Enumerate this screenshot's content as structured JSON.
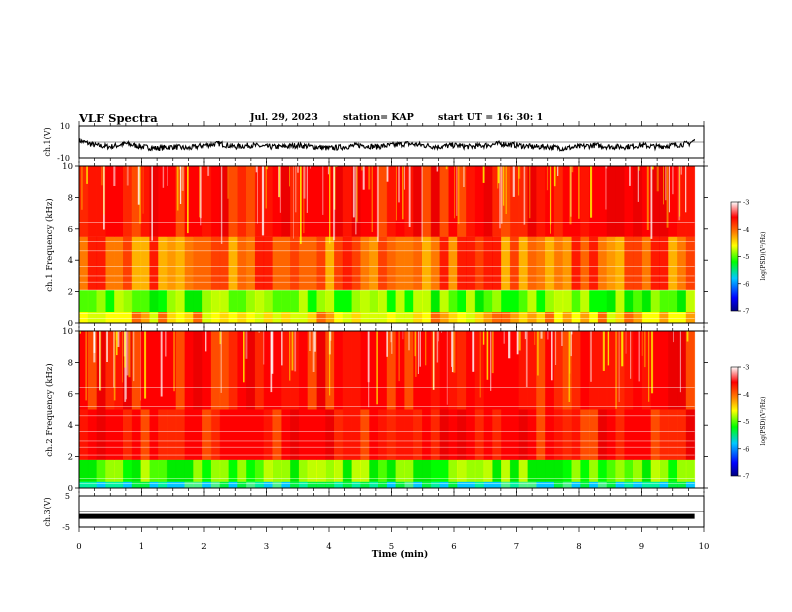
{
  "header": {
    "title": "VLF Spectra",
    "date": "Jul. 29, 2023",
    "station": "station= KAP",
    "start": "start UT =  16: 30: 1"
  },
  "colorbar": {
    "label": "log(PSD)(V²/Hz)",
    "ticks": [
      "-3",
      "-4",
      "-5",
      "-6",
      "-7"
    ],
    "colors": [
      "#000080",
      "#0000ff",
      "#00c8ff",
      "#00ff00",
      "#ffff00",
      "#ff8000",
      "#ff0000",
      "#ffffff"
    ]
  },
  "chart_data": [
    {
      "type": "line",
      "name": "ch.1(V)",
      "ylabel": "ch.1(V)",
      "ylim": [
        -10,
        10
      ],
      "y_tick_labels": [
        "10",
        "-10"
      ],
      "x": [
        0,
        0.25,
        0.5,
        0.75,
        1,
        1.25,
        1.5,
        1.75,
        2,
        2.25,
        2.5,
        2.75,
        3,
        3.25,
        3.5,
        3.75,
        4,
        4.25,
        4.5,
        4.75,
        5,
        5.25,
        5.5,
        5.75,
        6,
        6.25,
        6.5,
        6.75,
        7,
        7.25,
        7.5,
        7.75,
        8,
        8.25,
        8.5,
        8.75,
        9,
        9.25,
        9.5,
        9.75,
        9.85
      ],
      "y": [
        1,
        -2,
        -3,
        -1,
        -3,
        -4,
        -3,
        -4,
        -2,
        -1,
        -3,
        -2,
        -3,
        -3,
        -2,
        -3,
        -4,
        -3,
        -2,
        -3,
        -2,
        -1,
        -2,
        -3,
        -2,
        -3,
        -2,
        -1,
        -2,
        -3,
        -3,
        -4,
        -3,
        -2,
        -3,
        -3,
        -2,
        -3,
        -2,
        -1,
        1
      ],
      "xlim": [
        0,
        10
      ]
    },
    {
      "type": "heatmap",
      "name": "ch.1",
      "ylabel": "ch.1 Frequency (kHz)",
      "ylim": [
        0,
        10
      ],
      "y_tick_labels": [
        "10",
        "8",
        "6",
        "4",
        "2",
        "0"
      ],
      "xlim": [
        0,
        10
      ],
      "data_end_min": 9.85,
      "bands": [
        {
          "from": 0,
          "to": 0.7,
          "level": "yellow"
        },
        {
          "from": 0.7,
          "to": 2.1,
          "level": "green"
        },
        {
          "from": 2.1,
          "to": 5.5,
          "level": "orange"
        },
        {
          "from": 5.5,
          "to": 10,
          "level": "red"
        }
      ]
    },
    {
      "type": "heatmap",
      "name": "ch.2",
      "ylabel": "ch.2 Frequency (kHz)",
      "ylim": [
        0,
        10
      ],
      "y_tick_labels": [
        "10",
        "8",
        "6",
        "4",
        "2",
        "0"
      ],
      "xlim": [
        0,
        10
      ],
      "data_end_min": 9.85,
      "bands": [
        {
          "from": 0,
          "to": 0.4,
          "level": "cyan"
        },
        {
          "from": 0.4,
          "to": 1.8,
          "level": "green"
        },
        {
          "from": 1.8,
          "to": 5.0,
          "level": "red"
        },
        {
          "from": 5.0,
          "to": 10,
          "level": "red"
        }
      ]
    },
    {
      "type": "line",
      "name": "ch.3(V)",
      "ylabel": "ch.3(V)",
      "ylim": [
        -5,
        5
      ],
      "y_tick_labels": [
        "5",
        "-5"
      ],
      "x": [
        0,
        9.85
      ],
      "y": [
        -1.5,
        -1.5
      ],
      "xlim": [
        0,
        10
      ],
      "xlabel": "Time (min)",
      "x_tick_labels": [
        "0",
        "1",
        "2",
        "3",
        "4",
        "5",
        "6",
        "7",
        "8",
        "9",
        "10"
      ]
    }
  ]
}
